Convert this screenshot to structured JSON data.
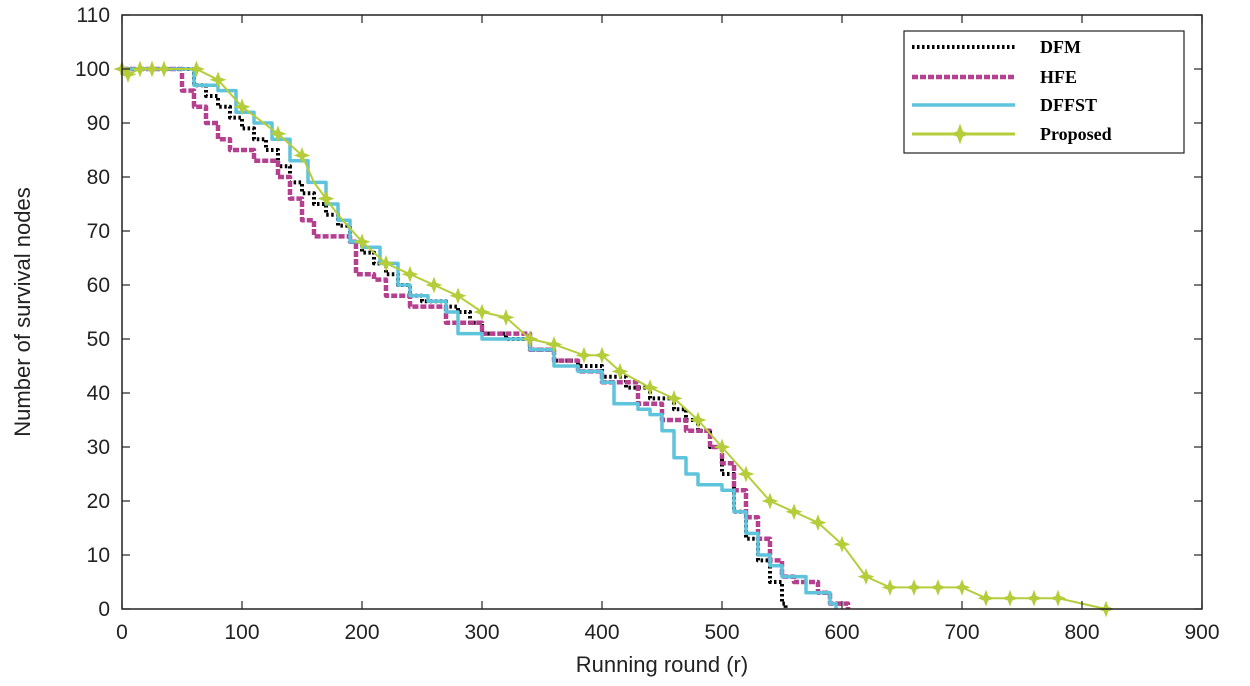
{
  "chart_data": {
    "type": "line",
    "title": "",
    "xlabel": "Running round (r)",
    "ylabel": "Number of survival nodes",
    "xlim": [
      0,
      900
    ],
    "ylim": [
      0,
      110
    ],
    "xticks": [
      0,
      100,
      200,
      300,
      400,
      500,
      600,
      700,
      800,
      900
    ],
    "yticks": [
      0,
      10,
      20,
      30,
      40,
      50,
      60,
      70,
      80,
      90,
      100,
      110
    ],
    "legend_position": "top-right",
    "series": [
      {
        "name": "DFM",
        "color": "#000000",
        "style": "dotted-step",
        "points": [
          [
            0,
            100
          ],
          [
            50,
            100
          ],
          [
            60,
            97
          ],
          [
            70,
            95
          ],
          [
            80,
            93
          ],
          [
            90,
            91
          ],
          [
            100,
            89
          ],
          [
            110,
            87
          ],
          [
            120,
            85
          ],
          [
            130,
            82
          ],
          [
            140,
            79
          ],
          [
            150,
            77
          ],
          [
            160,
            75
          ],
          [
            170,
            73
          ],
          [
            180,
            71
          ],
          [
            190,
            68
          ],
          [
            200,
            66
          ],
          [
            210,
            64
          ],
          [
            220,
            62
          ],
          [
            230,
            60
          ],
          [
            240,
            58
          ],
          [
            250,
            57
          ],
          [
            260,
            57
          ],
          [
            270,
            56
          ],
          [
            280,
            55
          ],
          [
            290,
            53
          ],
          [
            300,
            51
          ],
          [
            320,
            50
          ],
          [
            340,
            48
          ],
          [
            360,
            46
          ],
          [
            380,
            45
          ],
          [
            400,
            43
          ],
          [
            420,
            41
          ],
          [
            440,
            39
          ],
          [
            460,
            37
          ],
          [
            470,
            35
          ],
          [
            480,
            33
          ],
          [
            490,
            30
          ],
          [
            500,
            25
          ],
          [
            510,
            18
          ],
          [
            520,
            13
          ],
          [
            530,
            9
          ],
          [
            540,
            5
          ],
          [
            550,
            1
          ],
          [
            553,
            0
          ]
        ]
      },
      {
        "name": "HFE",
        "color": "#b5408f",
        "style": "dashed-step",
        "points": [
          [
            0,
            100
          ],
          [
            45,
            100
          ],
          [
            50,
            96
          ],
          [
            60,
            93
          ],
          [
            70,
            90
          ],
          [
            80,
            87
          ],
          [
            90,
            85
          ],
          [
            110,
            83
          ],
          [
            130,
            80
          ],
          [
            140,
            76
          ],
          [
            150,
            72
          ],
          [
            160,
            69
          ],
          [
            190,
            68
          ],
          [
            195,
            62
          ],
          [
            210,
            61
          ],
          [
            220,
            58
          ],
          [
            240,
            56
          ],
          [
            270,
            53
          ],
          [
            300,
            51
          ],
          [
            340,
            48
          ],
          [
            360,
            46
          ],
          [
            380,
            44
          ],
          [
            400,
            42
          ],
          [
            430,
            38
          ],
          [
            450,
            35
          ],
          [
            470,
            33
          ],
          [
            490,
            30
          ],
          [
            500,
            27
          ],
          [
            510,
            22
          ],
          [
            520,
            17
          ],
          [
            530,
            13
          ],
          [
            540,
            9
          ],
          [
            550,
            6
          ],
          [
            560,
            5
          ],
          [
            580,
            3
          ],
          [
            590,
            1
          ],
          [
            600,
            1
          ],
          [
            605,
            0
          ]
        ]
      },
      {
        "name": "DFFST",
        "color": "#5ec4dc",
        "style": "solid-step",
        "points": [
          [
            0,
            100
          ],
          [
            50,
            100
          ],
          [
            60,
            97
          ],
          [
            80,
            96
          ],
          [
            95,
            92
          ],
          [
            110,
            90
          ],
          [
            125,
            87
          ],
          [
            140,
            83
          ],
          [
            155,
            79
          ],
          [
            170,
            75
          ],
          [
            180,
            72
          ],
          [
            190,
            68
          ],
          [
            200,
            67
          ],
          [
            215,
            64
          ],
          [
            230,
            60
          ],
          [
            240,
            58
          ],
          [
            255,
            57
          ],
          [
            270,
            55
          ],
          [
            280,
            51
          ],
          [
            300,
            50
          ],
          [
            320,
            50
          ],
          [
            340,
            48
          ],
          [
            360,
            45
          ],
          [
            380,
            44
          ],
          [
            400,
            42
          ],
          [
            410,
            38
          ],
          [
            430,
            37
          ],
          [
            440,
            36
          ],
          [
            450,
            33
          ],
          [
            460,
            28
          ],
          [
            470,
            25
          ],
          [
            480,
            23
          ],
          [
            500,
            22
          ],
          [
            510,
            18
          ],
          [
            520,
            14
          ],
          [
            530,
            10
          ],
          [
            540,
            8
          ],
          [
            550,
            6
          ],
          [
            560,
            6
          ],
          [
            570,
            3
          ],
          [
            590,
            1
          ],
          [
            595,
            0
          ]
        ]
      },
      {
        "name": "Proposed",
        "color": "#b5cd3a",
        "style": "solid-star-markers",
        "points": [
          [
            0,
            100
          ],
          [
            5,
            99
          ],
          [
            15,
            100
          ],
          [
            25,
            100
          ],
          [
            35,
            100
          ],
          [
            45,
            100
          ],
          [
            62,
            100
          ],
          [
            80,
            98
          ],
          [
            100,
            93
          ],
          [
            130,
            88
          ],
          [
            150,
            84
          ],
          [
            160,
            79
          ],
          [
            170,
            76
          ],
          [
            180,
            73
          ],
          [
            200,
            68
          ],
          [
            210,
            66
          ],
          [
            220,
            64
          ],
          [
            240,
            62
          ],
          [
            260,
            60
          ],
          [
            280,
            58
          ],
          [
            300,
            55
          ],
          [
            320,
            54
          ],
          [
            340,
            50
          ],
          [
            360,
            49
          ],
          [
            385,
            47
          ],
          [
            400,
            47
          ],
          [
            415,
            44
          ],
          [
            440,
            41
          ],
          [
            460,
            39
          ],
          [
            480,
            35
          ],
          [
            500,
            30
          ],
          [
            520,
            25
          ],
          [
            540,
            20
          ],
          [
            560,
            18
          ],
          [
            580,
            16
          ],
          [
            600,
            12
          ],
          [
            620,
            6
          ],
          [
            640,
            4
          ],
          [
            660,
            4
          ],
          [
            680,
            4
          ],
          [
            700,
            4
          ],
          [
            720,
            2
          ],
          [
            740,
            2
          ],
          [
            760,
            2
          ],
          [
            780,
            2
          ],
          [
            800,
            1
          ],
          [
            820,
            0
          ]
        ],
        "markers": [
          [
            0,
            100
          ],
          [
            5,
            99
          ],
          [
            15,
            100
          ],
          [
            25,
            100
          ],
          [
            35,
            100
          ],
          [
            62,
            100
          ],
          [
            80,
            98
          ],
          [
            100,
            93
          ],
          [
            130,
            88
          ],
          [
            150,
            84
          ],
          [
            170,
            76
          ],
          [
            200,
            68
          ],
          [
            220,
            64
          ],
          [
            240,
            62
          ],
          [
            260,
            60
          ],
          [
            280,
            58
          ],
          [
            300,
            55
          ],
          [
            320,
            54
          ],
          [
            340,
            50
          ],
          [
            360,
            49
          ],
          [
            385,
            47
          ],
          [
            400,
            47
          ],
          [
            415,
            44
          ],
          [
            440,
            41
          ],
          [
            460,
            39
          ],
          [
            480,
            35
          ],
          [
            500,
            30
          ],
          [
            520,
            25
          ],
          [
            540,
            20
          ],
          [
            560,
            18
          ],
          [
            580,
            16
          ],
          [
            600,
            12
          ],
          [
            620,
            6
          ],
          [
            640,
            4
          ],
          [
            660,
            4
          ],
          [
            680,
            4
          ],
          [
            700,
            4
          ],
          [
            720,
            2
          ],
          [
            740,
            2
          ],
          [
            760,
            2
          ],
          [
            780,
            2
          ],
          [
            820,
            0
          ]
        ]
      }
    ]
  }
}
